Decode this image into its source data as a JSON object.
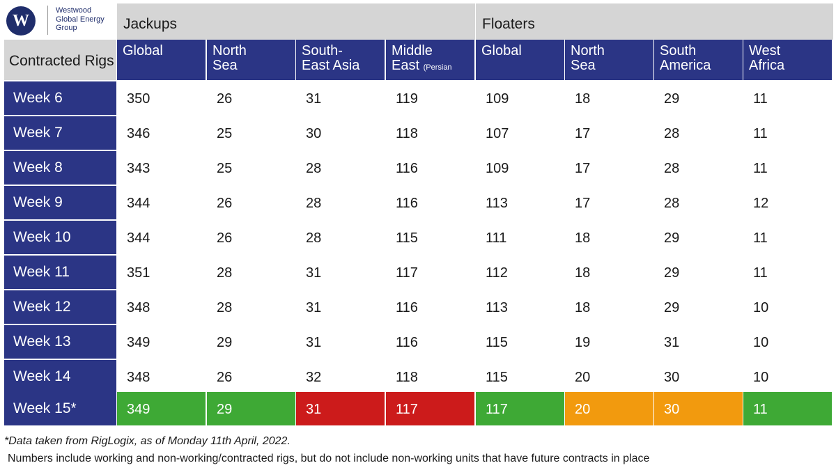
{
  "logo": {
    "letter": "W",
    "text": "Westwood\nGlobal Energy\nGroup"
  },
  "groups": [
    "Jackups",
    "Floaters"
  ],
  "row_header_label": "Contracted Rigs",
  "columns": [
    {
      "label": "Global",
      "sub": ""
    },
    {
      "label": "North Sea",
      "sub": ""
    },
    {
      "label": "South-East Asia",
      "sub": ""
    },
    {
      "label": "Middle East",
      "sub": "(Persian Gulf)"
    },
    {
      "label": "Global",
      "sub": ""
    },
    {
      "label": "North Sea",
      "sub": ""
    },
    {
      "label": "South America",
      "sub": ""
    },
    {
      "label": "West Africa",
      "sub": ""
    }
  ],
  "rows": [
    {
      "week": "Week 6",
      "values": [
        "350",
        "26",
        "31",
        "119",
        "109",
        "18",
        "29",
        "11"
      ]
    },
    {
      "week": "Week 7",
      "values": [
        "346",
        "25",
        "30",
        "118",
        "107",
        "17",
        "28",
        "11"
      ]
    },
    {
      "week": "Week 8",
      "values": [
        "343",
        "25",
        "28",
        "116",
        "109",
        "17",
        "28",
        "11"
      ]
    },
    {
      "week": "Week 9",
      "values": [
        "344",
        "26",
        "28",
        "116",
        "113",
        "17",
        "28",
        "12"
      ]
    },
    {
      "week": "Week 10",
      "values": [
        "344",
        "26",
        "28",
        "115",
        "111",
        "18",
        "29",
        "11"
      ]
    },
    {
      "week": "Week 11",
      "values": [
        "351",
        "28",
        "31",
        "117",
        "112",
        "18",
        "29",
        "11"
      ]
    },
    {
      "week": "Week 12",
      "values": [
        "348",
        "28",
        "31",
        "116",
        "113",
        "18",
        "29",
        "10"
      ]
    },
    {
      "week": "Week 13",
      "values": [
        "349",
        "29",
        "31",
        "116",
        "115",
        "19",
        "31",
        "10"
      ]
    },
    {
      "week": "Week 14",
      "values": [
        "348",
        "26",
        "32",
        "118",
        "115",
        "20",
        "30",
        "10"
      ]
    }
  ],
  "highlight_row": {
    "week": "Week 15*",
    "values": [
      "349",
      "29",
      "31",
      "117",
      "117",
      "20",
      "30",
      "11"
    ],
    "status": [
      "green",
      "green",
      "red",
      "red",
      "green",
      "orange",
      "orange",
      "green"
    ]
  },
  "colors": {
    "header_navy": "#2b3585",
    "group_grey": "#d5d5d5",
    "green": "#3ea935",
    "red": "#cc1b1b",
    "orange": "#f29a0e"
  },
  "footnotes": {
    "source": "*Data taken from RigLogix, as of Monday 11th  April, 2022.",
    "note": "Numbers include working and non-working/contracted rigs, but do not include non-working units that have future contracts in place"
  }
}
